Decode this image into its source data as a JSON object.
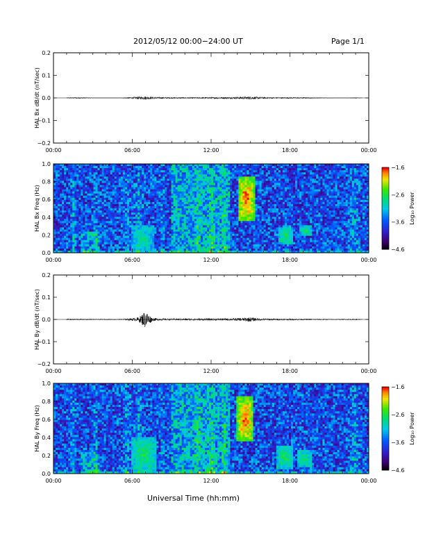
{
  "header": {
    "date_range": "2012/05/12  00:00−24:00 UT",
    "page": "Page 1/1"
  },
  "x_axis_label": "Universal Time (hh:mm)",
  "chart_data": [
    {
      "type": "line",
      "ylabel": "HAL Bx dB/dt (nT/sec)",
      "ylim": [
        -0.2,
        0.2
      ],
      "y_ticks": [
        "0.2",
        "0.1",
        "0.0",
        "−0.1",
        "−0.2"
      ],
      "x_ticks": [
        "00:00",
        "06:00",
        "12:00",
        "18:00",
        "00:00"
      ],
      "xlim_hours": [
        0,
        24
      ],
      "series": [
        {
          "x": [
            0,
            1,
            2,
            3,
            4,
            5,
            5.5,
            6,
            6.5,
            7,
            7.5,
            8,
            9,
            10,
            11,
            12,
            13,
            14,
            14.5,
            15,
            15.5,
            16,
            17,
            18,
            19,
            20,
            21,
            22,
            23,
            24
          ],
          "values": [
            0.0,
            0.002,
            0.003,
            0.001,
            0.0,
            0.0,
            0.003,
            0.004,
            0.006,
            0.008,
            0.005,
            0.004,
            0.003,
            0.003,
            0.003,
            0.004,
            0.004,
            0.005,
            0.006,
            0.007,
            0.005,
            0.004,
            0.003,
            0.003,
            0.003,
            0.002,
            0.001,
            0.0,
            0.002,
            0.0
          ]
        }
      ]
    },
    {
      "type": "heatmap",
      "ylabel": "HAL Bx Freq (Hz)",
      "ylim": [
        0,
        1.0
      ],
      "y_ticks": [
        "1.0",
        "0.8",
        "0.6",
        "0.4",
        "0.2",
        "0.0"
      ],
      "x_ticks": [
        "00:00",
        "06:00",
        "12:00",
        "18:00",
        "00:00"
      ],
      "colorbar": {
        "label": "Log₁₀ Power",
        "ticks": [
          "−1.6",
          "−2.6",
          "−3.6",
          "−4.6"
        ],
        "range": [
          -4.6,
          -1.6
        ]
      },
      "features": [
        {
          "t_start": 14.1,
          "t_end": 15.3,
          "f_low": 0.35,
          "f_high": 0.85,
          "peak_power": -1.6
        },
        {
          "t_start": 17.1,
          "t_end": 18.2,
          "f_low": 0.1,
          "f_high": 0.28,
          "peak_power": -2.6
        },
        {
          "t_start": 18.8,
          "t_end": 19.6,
          "f_low": 0.18,
          "f_high": 0.3,
          "peak_power": -2.6
        },
        {
          "t_start": 6.0,
          "t_end": 7.6,
          "f_low": 0.0,
          "f_high": 0.3,
          "peak_power": -2.8
        }
      ]
    },
    {
      "type": "line",
      "ylabel": "HAL By dB/dt (nT/sec)",
      "ylim": [
        -0.2,
        0.2
      ],
      "y_ticks": [
        "0.2",
        "0.1",
        "0.0",
        "−0.1",
        "−0.2"
      ],
      "x_ticks": [
        "00:00",
        "06:00",
        "12:00",
        "18:00",
        "00:00"
      ],
      "xlim_hours": [
        0,
        24
      ],
      "series": [
        {
          "x": [
            0,
            1,
            2,
            3,
            4,
            5,
            5.5,
            6,
            6.5,
            7,
            7.5,
            8,
            9,
            10,
            11,
            12,
            13,
            14,
            14.5,
            15,
            15.5,
            16,
            17,
            18,
            19,
            20,
            21,
            22,
            23,
            24
          ],
          "values": [
            0.0,
            0.003,
            0.003,
            0.002,
            0.002,
            0.002,
            0.004,
            0.006,
            0.01,
            0.04,
            0.008,
            0.005,
            0.004,
            0.005,
            0.005,
            0.005,
            0.005,
            0.006,
            0.008,
            0.01,
            0.006,
            0.005,
            0.004,
            0.004,
            0.003,
            0.003,
            0.002,
            0.002,
            0.003,
            0.0
          ]
        }
      ]
    },
    {
      "type": "heatmap",
      "ylabel": "HAL By Freq (Hz)",
      "ylim": [
        0,
        1.0
      ],
      "y_ticks": [
        "1.0",
        "0.8",
        "0.6",
        "0.4",
        "0.2",
        "0.0"
      ],
      "x_ticks": [
        "00:00",
        "06:00",
        "12:00",
        "18:00",
        "00:00"
      ],
      "colorbar": {
        "label": "Log₁₀ Power",
        "ticks": [
          "−1.6",
          "−2.6",
          "−3.6",
          "−4.6"
        ],
        "range": [
          -4.6,
          -1.6
        ]
      },
      "features": [
        {
          "t_start": 14.0,
          "t_end": 15.2,
          "f_low": 0.35,
          "f_high": 0.85,
          "peak_power": -1.6
        },
        {
          "t_start": 17.0,
          "t_end": 18.2,
          "f_low": 0.05,
          "f_high": 0.32,
          "peak_power": -2.6
        },
        {
          "t_start": 18.6,
          "t_end": 19.6,
          "f_low": 0.08,
          "f_high": 0.25,
          "peak_power": -2.6
        },
        {
          "t_start": 6.0,
          "t_end": 7.8,
          "f_low": 0.0,
          "f_high": 0.4,
          "peak_power": -2.6
        }
      ]
    }
  ]
}
